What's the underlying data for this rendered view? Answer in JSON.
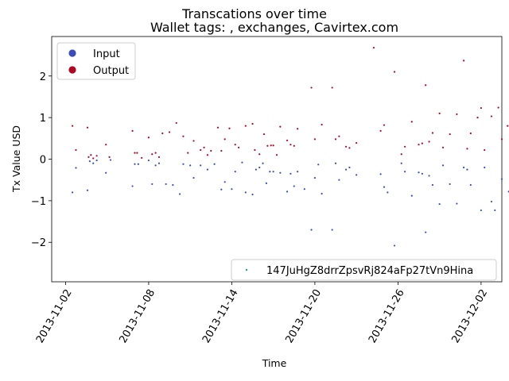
{
  "chart_data": {
    "type": "scatter",
    "title": "Transcations over time",
    "subtitle": "Wallet tags: , exchanges, Cavirtex.com",
    "xlabel": "Time",
    "ylabel": "Tx Value USD",
    "xlim": [
      "2013-11-01",
      "2013-12-03T12:00"
    ],
    "ylim": [
      -2.95,
      2.95
    ],
    "xticks": [
      "2013-11-02",
      "2013-11-08",
      "2013-11-14",
      "2013-11-20",
      "2013-11-26",
      "2013-12-02"
    ],
    "yticks": [
      -2,
      -1,
      0,
      1,
      2
    ],
    "legend_markers": [
      {
        "label": "Input",
        "color": "#3b4cc0"
      },
      {
        "label": "Output",
        "color": "#b40426"
      }
    ],
    "legend_address": {
      "label": "147JuHgZ8drrZpsvRj824aFp27tVn9Hina",
      "color": "#1f9a8a"
    },
    "series": [
      {
        "name": "Output",
        "color": "#b40426",
        "points": [
          [
            "2013-11-02T12:00",
            0.8
          ],
          [
            "2013-11-02T18:00",
            0.22
          ],
          [
            "2013-11-03T14:00",
            0.76
          ],
          [
            "2013-11-03T16:00",
            0.05
          ],
          [
            "2013-11-03T20:00",
            0.1
          ],
          [
            "2013-11-04T00:00",
            0.02
          ],
          [
            "2013-11-04T06:00",
            0.08
          ],
          [
            "2013-11-04T22:00",
            0.35
          ],
          [
            "2013-11-05T04:00",
            0.05
          ],
          [
            "2013-11-06T20:00",
            0.68
          ],
          [
            "2013-11-07T00:00",
            0.15
          ],
          [
            "2013-11-07T04:00",
            0.15
          ],
          [
            "2013-11-07T12:00",
            0.03
          ],
          [
            "2013-11-08T00:00",
            0.52
          ],
          [
            "2013-11-08T06:00",
            0.12
          ],
          [
            "2013-11-08T12:00",
            0.15
          ],
          [
            "2013-11-08T18:00",
            0.05
          ],
          [
            "2013-11-09T00:00",
            0.62
          ],
          [
            "2013-11-09T12:00",
            0.65
          ],
          [
            "2013-11-10T00:00",
            0.87
          ],
          [
            "2013-11-10T12:00",
            0.55
          ],
          [
            "2013-11-10T20:00",
            0.15
          ],
          [
            "2013-11-11T06:00",
            0.44
          ],
          [
            "2013-11-11T18:00",
            0.22
          ],
          [
            "2013-11-12T00:00",
            0.28
          ],
          [
            "2013-11-12T06:00",
            0.1
          ],
          [
            "2013-11-12T12:00",
            0.2
          ],
          [
            "2013-11-13T00:00",
            0.76
          ],
          [
            "2013-11-13T06:00",
            0.2
          ],
          [
            "2013-11-13T12:00",
            0.48
          ],
          [
            "2013-11-13T20:00",
            0.74
          ],
          [
            "2013-11-14T06:00",
            0.35
          ],
          [
            "2013-11-14T12:00",
            0.28
          ],
          [
            "2013-11-15T00:00",
            0.8
          ],
          [
            "2013-11-15T12:00",
            0.85
          ],
          [
            "2013-11-15T16:00",
            0.22
          ],
          [
            "2013-11-16T00:00",
            0.12
          ],
          [
            "2013-11-16T08:00",
            0.6
          ],
          [
            "2013-11-16T14:00",
            0.32
          ],
          [
            "2013-11-16T20:00",
            0.33
          ],
          [
            "2013-11-17T00:00",
            0.33
          ],
          [
            "2013-11-17T06:00",
            0.1
          ],
          [
            "2013-11-17T12:00",
            0.78
          ],
          [
            "2013-11-18T00:00",
            0.45
          ],
          [
            "2013-11-18T06:00",
            0.35
          ],
          [
            "2013-11-18T12:00",
            0.32
          ],
          [
            "2013-11-18T18:00",
            0.73
          ],
          [
            "2013-11-19T18:00",
            1.72
          ],
          [
            "2013-11-20T00:00",
            0.48
          ],
          [
            "2013-11-20T12:00",
            0.83
          ],
          [
            "2013-11-21T06:00",
            1.72
          ],
          [
            "2013-11-21T12:00",
            0.48
          ],
          [
            "2013-11-21T18:00",
            0.55
          ],
          [
            "2013-11-22T06:00",
            0.3
          ],
          [
            "2013-11-22T12:00",
            0.27
          ],
          [
            "2013-11-23T00:00",
            0.39
          ],
          [
            "2013-11-24T06:00",
            2.68
          ],
          [
            "2013-11-24T18:00",
            0.68
          ],
          [
            "2013-11-25T00:00",
            0.82
          ],
          [
            "2013-11-25T18:00",
            2.1
          ],
          [
            "2013-11-26T06:00",
            0.12
          ],
          [
            "2013-11-26T12:00",
            0.3
          ],
          [
            "2013-11-27T00:00",
            0.9
          ],
          [
            "2013-11-27T12:00",
            0.35
          ],
          [
            "2013-11-27T18:00",
            0.38
          ],
          [
            "2013-11-28T00:00",
            1.78
          ],
          [
            "2013-11-28T06:00",
            0.42
          ],
          [
            "2013-11-28T12:00",
            0.63
          ],
          [
            "2013-11-29T00:00",
            1.1
          ],
          [
            "2013-11-29T06:00",
            0.28
          ],
          [
            "2013-11-29T18:00",
            0.6
          ],
          [
            "2013-11-30T06:00",
            1.08
          ],
          [
            "2013-11-30T18:00",
            2.37
          ],
          [
            "2013-12-01T00:00",
            0.25
          ],
          [
            "2013-12-01T06:00",
            0.62
          ],
          [
            "2013-12-01T18:00",
            1.0
          ],
          [
            "2013-12-02T00:00",
            1.23
          ],
          [
            "2013-12-02T06:00",
            0.22
          ],
          [
            "2013-12-02T18:00",
            1.03
          ],
          [
            "2013-12-03T06:00",
            1.24
          ],
          [
            "2013-12-03T12:00",
            0.48
          ],
          [
            "2013-12-03T22:00",
            0.8
          ]
        ]
      },
      {
        "name": "Input",
        "color": "#3b4cc0",
        "points": [
          [
            "2013-11-02T12:00",
            -0.8
          ],
          [
            "2013-11-02T18:00",
            -0.21
          ],
          [
            "2013-11-03T14:00",
            -0.75
          ],
          [
            "2013-11-03T18:00",
            -0.05
          ],
          [
            "2013-11-04T00:00",
            -0.1
          ],
          [
            "2013-11-04T06:00",
            -0.03
          ],
          [
            "2013-11-04T22:00",
            -0.33
          ],
          [
            "2013-11-05T06:00",
            -0.02
          ],
          [
            "2013-11-06T20:00",
            -0.65
          ],
          [
            "2013-11-07T00:00",
            -0.12
          ],
          [
            "2013-11-07T06:00",
            -0.12
          ],
          [
            "2013-11-08T00:00",
            -0.03
          ],
          [
            "2013-11-08T06:00",
            -0.6
          ],
          [
            "2013-11-08T12:00",
            -0.15
          ],
          [
            "2013-11-08T18:00",
            -0.1
          ],
          [
            "2013-11-09T06:00",
            -0.6
          ],
          [
            "2013-11-09T18:00",
            -0.62
          ],
          [
            "2013-11-10T06:00",
            -0.84
          ],
          [
            "2013-11-10T12:00",
            -0.12
          ],
          [
            "2013-11-11T00:00",
            -0.15
          ],
          [
            "2013-11-11T06:00",
            -0.45
          ],
          [
            "2013-11-11T18:00",
            -0.15
          ],
          [
            "2013-11-12T06:00",
            -0.25
          ],
          [
            "2013-11-12T18:00",
            -0.12
          ],
          [
            "2013-11-13T06:00",
            -0.73
          ],
          [
            "2013-11-13T12:00",
            -0.55
          ],
          [
            "2013-11-14T00:00",
            -0.72
          ],
          [
            "2013-11-14T06:00",
            -0.3
          ],
          [
            "2013-11-14T18:00",
            -0.08
          ],
          [
            "2013-11-15T00:00",
            -0.8
          ],
          [
            "2013-11-15T12:00",
            -0.85
          ],
          [
            "2013-11-15T18:00",
            -0.25
          ],
          [
            "2013-11-16T00:00",
            -0.2
          ],
          [
            "2013-11-16T06:00",
            -0.1
          ],
          [
            "2013-11-16T12:00",
            -0.58
          ],
          [
            "2013-11-16T18:00",
            -0.3
          ],
          [
            "2013-11-17T00:00",
            -0.3
          ],
          [
            "2013-11-17T12:00",
            -0.33
          ],
          [
            "2013-11-18T00:00",
            -0.78
          ],
          [
            "2013-11-18T06:00",
            -0.35
          ],
          [
            "2013-11-18T12:00",
            -0.65
          ],
          [
            "2013-11-18T18:00",
            -0.3
          ],
          [
            "2013-11-19T06:00",
            -0.72
          ],
          [
            "2013-11-19T18:00",
            -1.7
          ],
          [
            "2013-11-20T00:00",
            -0.45
          ],
          [
            "2013-11-20T06:00",
            -0.13
          ],
          [
            "2013-11-20T12:00",
            -0.83
          ],
          [
            "2013-11-21T06:00",
            -1.7
          ],
          [
            "2013-11-21T12:00",
            -0.1
          ],
          [
            "2013-11-21T18:00",
            -0.5
          ],
          [
            "2013-11-22T06:00",
            -0.25
          ],
          [
            "2013-11-22T12:00",
            -0.2
          ],
          [
            "2013-11-23T00:00",
            -0.38
          ],
          [
            "2013-11-24T18:00",
            -0.36
          ],
          [
            "2013-11-25T00:00",
            -0.67
          ],
          [
            "2013-11-25T06:00",
            -0.8
          ],
          [
            "2013-11-25T18:00",
            -2.08
          ],
          [
            "2013-11-26T06:00",
            -0.1
          ],
          [
            "2013-11-26T12:00",
            -0.3
          ],
          [
            "2013-11-27T00:00",
            -0.88
          ],
          [
            "2013-11-27T12:00",
            -0.32
          ],
          [
            "2013-11-27T18:00",
            -0.35
          ],
          [
            "2013-11-28T00:00",
            -1.76
          ],
          [
            "2013-11-28T06:00",
            -0.4
          ],
          [
            "2013-11-28T12:00",
            -0.62
          ],
          [
            "2013-11-29T00:00",
            -1.08
          ],
          [
            "2013-11-29T06:00",
            -0.15
          ],
          [
            "2013-11-29T18:00",
            -0.6
          ],
          [
            "2013-11-30T06:00",
            -1.07
          ],
          [
            "2013-11-30T18:00",
            -0.2
          ],
          [
            "2013-12-01T00:00",
            -0.25
          ],
          [
            "2013-12-01T06:00",
            -0.62
          ],
          [
            "2013-12-02T00:00",
            -1.23
          ],
          [
            "2013-12-02T06:00",
            -0.2
          ],
          [
            "2013-12-02T18:00",
            -1.02
          ],
          [
            "2013-12-03T00:00",
            -1.23
          ],
          [
            "2013-12-03T12:00",
            -0.48
          ],
          [
            "2013-12-04T00:00",
            -0.78
          ]
        ]
      }
    ]
  }
}
